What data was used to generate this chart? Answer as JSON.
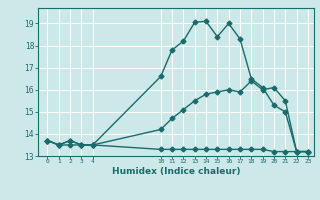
{
  "xlabel": "Humidex (Indice chaleur)",
  "bg_color": "#cce8e8",
  "grid_color": "#ffffff",
  "line_color": "#1a6b6b",
  "markersize": 2.5,
  "linewidth": 1.0,
  "hours": [
    0,
    1,
    2,
    3,
    4,
    10,
    11,
    12,
    13,
    14,
    15,
    16,
    17,
    18,
    19,
    20,
    21,
    22,
    23
  ],
  "series1": [
    13.7,
    13.5,
    13.7,
    13.5,
    13.5,
    16.6,
    17.8,
    18.2,
    19.05,
    19.1,
    18.4,
    19.0,
    18.3,
    16.5,
    16.1,
    15.3,
    15.0,
    13.2,
    13.2
  ],
  "series2": [
    13.7,
    13.5,
    13.7,
    13.5,
    13.5,
    14.2,
    14.7,
    15.1,
    15.5,
    15.8,
    15.9,
    16.0,
    15.9,
    16.4,
    16.0,
    16.1,
    15.5,
    13.2,
    13.2
  ],
  "series3": [
    13.7,
    13.5,
    13.5,
    13.5,
    13.5,
    13.3,
    13.3,
    13.3,
    13.3,
    13.3,
    13.3,
    13.3,
    13.3,
    13.3,
    13.3,
    13.2,
    13.2,
    13.2,
    13.2
  ],
  "xticks": [
    0,
    1,
    2,
    3,
    4,
    10,
    11,
    12,
    13,
    14,
    15,
    16,
    17,
    18,
    19,
    20,
    21,
    22,
    23
  ],
  "xlim": [
    -0.8,
    23.5
  ],
  "ylim": [
    13.0,
    19.7
  ],
  "yticks": [
    13,
    14,
    15,
    16,
    17,
    18,
    19
  ]
}
